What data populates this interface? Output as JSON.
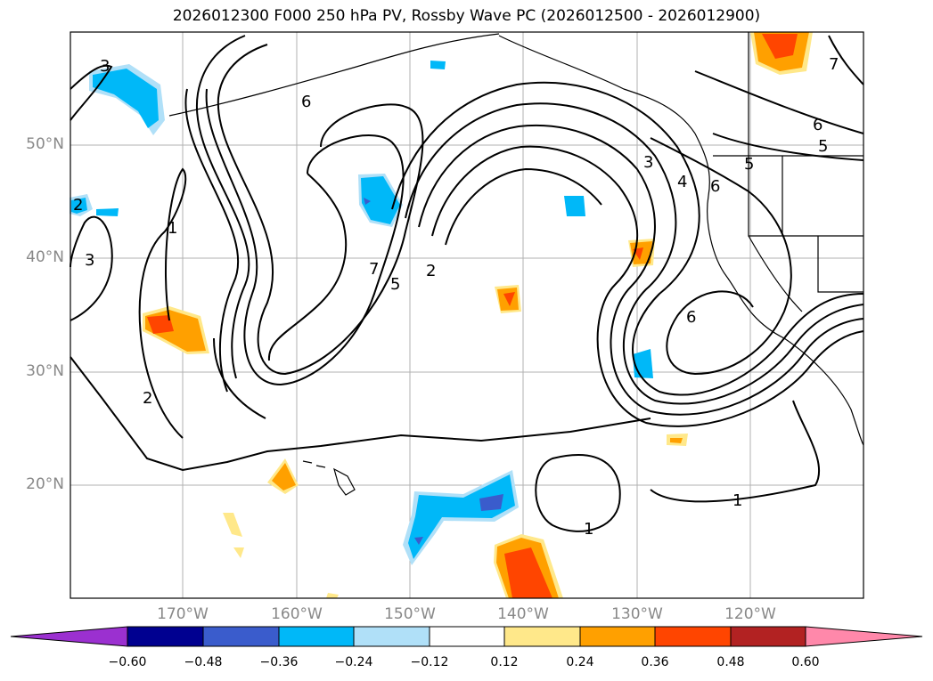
{
  "title": "2026012300 F000 250 hPa PV, Rossby Wave PC (2026012500 - 2026012900)",
  "lat_labels": [
    "50°N",
    "40°N",
    "30°N",
    "20°N"
  ],
  "lon_labels": [
    "170°W",
    "160°W",
    "150°W",
    "140°W",
    "130°W",
    "120°W"
  ],
  "colorbar": {
    "ticks": [
      "−0.60",
      "−0.48",
      "−0.36",
      "−0.24",
      "−0.12",
      "0.12",
      "0.24",
      "0.36",
      "0.48",
      "0.60"
    ],
    "colors": [
      "#9b30d0",
      "#000090",
      "#3a5ccc",
      "#00b8f8",
      "#b0e0f8",
      "#ffffff",
      "#ffe88a",
      "#ffa000",
      "#ff4500",
      "#b22222",
      "#ff88aa"
    ]
  },
  "contour_labels": [
    "1",
    "1",
    "1",
    "2",
    "2",
    "2",
    "3",
    "3",
    "3",
    "4",
    "5",
    "5",
    "5",
    "6",
    "6",
    "6",
    "6",
    "7",
    "7"
  ]
}
